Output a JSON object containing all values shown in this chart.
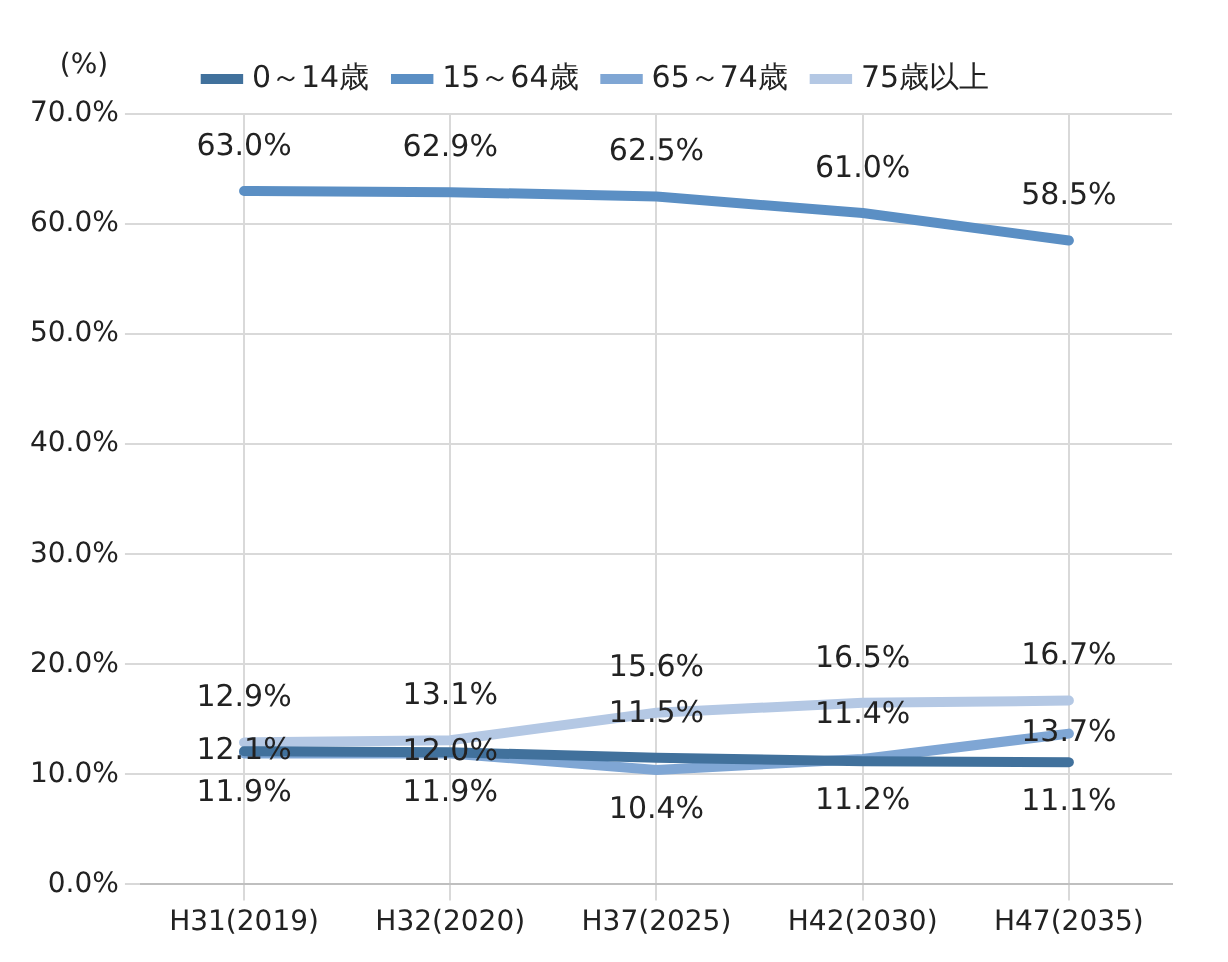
{
  "chart_data": {
    "type": "line",
    "ylabel": "(%)",
    "categories": [
      "H31(2019)",
      "H32(2020)",
      "H37(2025)",
      "H42(2030)",
      "H47(2035)"
    ],
    "series": [
      {
        "name": "0～14歳",
        "color": "#41719c",
        "values": [
          12.1,
          12.0,
          11.5,
          11.2,
          11.1
        ],
        "value_labels": [
          "12.1%",
          "12.0%",
          "11.5%",
          "11.2%",
          "11.1%"
        ]
      },
      {
        "name": "15～64歳",
        "color": "#5b8fc4",
        "values": [
          63.0,
          62.9,
          62.5,
          61.0,
          58.5
        ],
        "value_labels": [
          "63.0%",
          "62.9%",
          "62.5%",
          "61.0%",
          "58.5%"
        ]
      },
      {
        "name": "65～74歳",
        "color": "#7fa6d4",
        "values": [
          11.9,
          11.9,
          10.4,
          11.4,
          13.7
        ],
        "value_labels": [
          "11.9%",
          "11.9%",
          "10.4%",
          "11.4%",
          "13.7%"
        ]
      },
      {
        "name": "75歳以上",
        "color": "#b4c8e4",
        "values": [
          12.9,
          13.1,
          15.6,
          16.5,
          16.7
        ],
        "value_labels": [
          "12.9%",
          "13.1%",
          "15.6%",
          "16.5%",
          "16.7%"
        ]
      }
    ],
    "ylim": [
      0,
      70
    ],
    "yticks": [
      {
        "value": 0,
        "label": "0.0%"
      },
      {
        "value": 10,
        "label": "10.0%"
      },
      {
        "value": 20,
        "label": "20.0%"
      },
      {
        "value": 30,
        "label": "30.0%"
      },
      {
        "value": 40,
        "label": "40.0%"
      },
      {
        "value": 50,
        "label": "50.0%"
      },
      {
        "value": 60,
        "label": "60.0%"
      },
      {
        "value": 70,
        "label": "70.0%"
      }
    ],
    "grid": true,
    "legend": "top",
    "marker": "none",
    "line_style": "solid"
  }
}
